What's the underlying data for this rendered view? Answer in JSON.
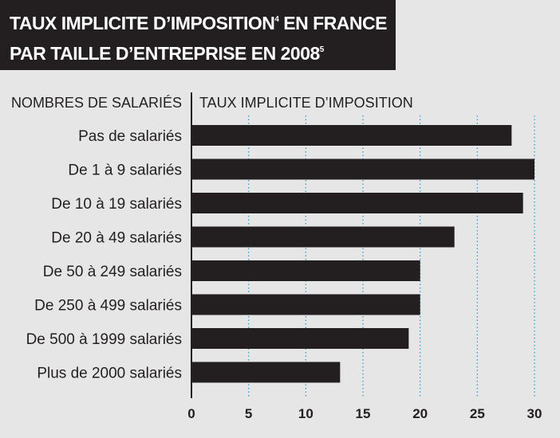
{
  "title": {
    "line1_main": "TAUX IMPLICITE D’IMPOSITION",
    "line1_sup": "4",
    "line1_tail": " EN FRANCE",
    "line2_main": "PAR TAILLE D’ENTREPRISE EN 2008",
    "line2_sup": "5"
  },
  "colors": {
    "bar": "#231f20",
    "grid": "#1c9bd7",
    "background": "#e6e6e6"
  },
  "chart_data": {
    "type": "bar",
    "orientation": "horizontal",
    "ylabel": "NOMBRES DE SALARIÉS",
    "xlabel": "TAUX IMPLICITE D’IMPOSITION",
    "categories": [
      "Pas de salariés",
      "De 1 à 9 salariés",
      "De 10 à 19 salariés",
      "De 20 à 49 salariés",
      "De 50 à 249 salariés",
      "De 250 à 499 salariés",
      "De 500 à 1999 salariés",
      "Plus de 2000 salariés"
    ],
    "values": [
      28,
      30,
      29,
      23,
      20,
      20,
      19,
      13
    ],
    "xlim": [
      0,
      30
    ],
    "xticks": [
      "0",
      "5",
      "10",
      "15",
      "20",
      "25",
      "30"
    ],
    "grid": "vertical dotted"
  }
}
